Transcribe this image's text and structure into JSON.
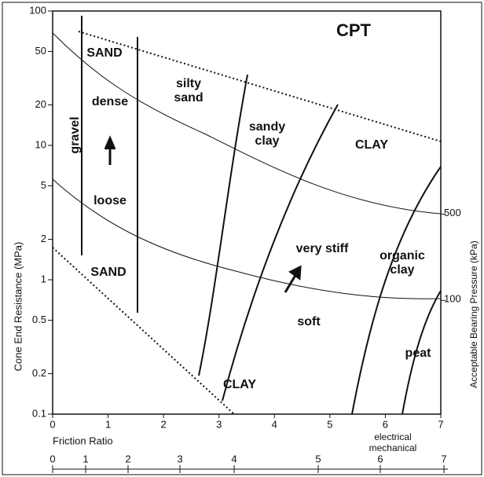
{
  "chart_data": {
    "type": "classification",
    "title": "CPT",
    "y_label": "Cone End Resistance (MPa)",
    "y2_label": "Acceptable Bearing Pressure (kPa)",
    "x_label": "Friction Ratio",
    "x_scale_labels": [
      "electrical",
      "mechanical"
    ],
    "xlim": [
      0,
      7
    ],
    "xticks": [
      0,
      1,
      2,
      3,
      4,
      5,
      6,
      7
    ],
    "ylim": [
      0.1,
      100
    ],
    "ylog": true,
    "yticks": [
      0.1,
      0.2,
      0.5,
      1,
      2,
      5,
      10,
      20,
      50,
      100
    ],
    "y2lim": [
      12,
      22000
    ],
    "y2log": true,
    "y2ticks": [
      100,
      500
    ],
    "x2ticks": [
      0,
      1,
      2,
      3,
      4,
      5,
      6,
      7
    ],
    "annotations": [
      [
        "SAND"
      ],
      [
        "dense"
      ],
      [
        "gravel"
      ],
      [
        "loose"
      ],
      [
        "SAND"
      ],
      [
        "silty",
        "sand"
      ],
      [
        "sandy",
        "clay"
      ],
      [
        "CLAY"
      ],
      [
        "very stiff"
      ],
      [
        "organic",
        "clay"
      ],
      [
        "soft"
      ],
      [
        "CLAY"
      ],
      [
        "peat"
      ]
    ]
  }
}
